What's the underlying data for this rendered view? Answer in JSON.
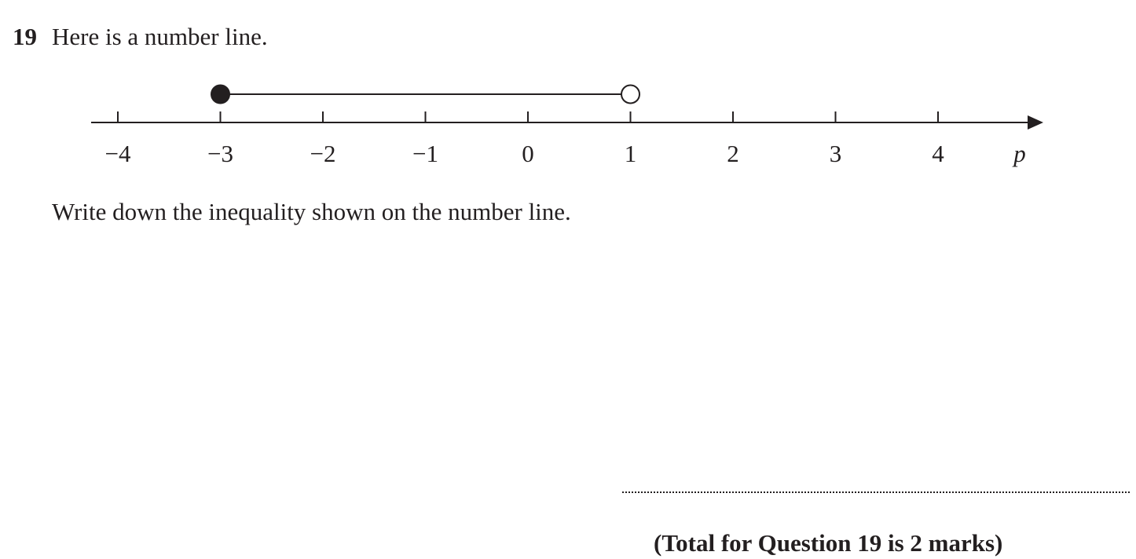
{
  "question": {
    "number": "19",
    "intro": "Here is a number line.",
    "instruction": "Write down the inequality shown on the number line.",
    "total": "(Total for Question 19 is 2 marks)"
  },
  "number_line": {
    "variable": "p",
    "min": -4,
    "max": 4,
    "tick_labels": [
      "−4",
      "−3",
      "−2",
      "−1",
      "0",
      "1",
      "2",
      "3",
      "4"
    ],
    "interval": {
      "start": -3,
      "start_inclusive": true,
      "end": 1,
      "end_inclusive": false
    },
    "color": "#231f20"
  }
}
